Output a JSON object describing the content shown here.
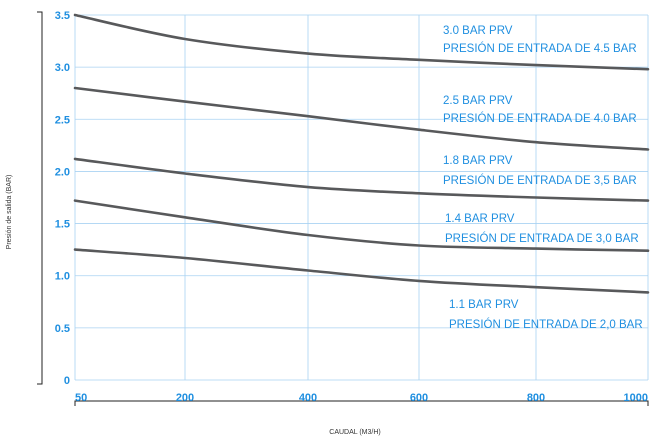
{
  "chart_data": {
    "type": "line",
    "title": "",
    "xlabel": "CAUDAL (M3/H)",
    "ylabel": "Presión de salida (BAR)",
    "x_ticks": [
      "50",
      "200",
      "400",
      "600",
      "800",
      "1000"
    ],
    "y_ticks": [
      "0",
      "0.5",
      "1.0",
      "1.5",
      "2.0",
      "2.5",
      "3.0",
      "3.5"
    ],
    "xlim": [
      50,
      1000
    ],
    "ylim": [
      0,
      3.5
    ],
    "grid": true,
    "series": [
      {
        "name": "3.0 BAR PRV",
        "subtitle": "PRESIÓN DE ENTRADA DE 4.5 BAR",
        "x": [
          50,
          200,
          400,
          600,
          800,
          1000
        ],
        "y": [
          3.5,
          3.27,
          3.13,
          3.07,
          3.02,
          2.98
        ]
      },
      {
        "name": "2.5 BAR PRV",
        "subtitle": "PRESIÓN DE ENTRADA DE 4.0 BAR",
        "x": [
          50,
          200,
          400,
          600,
          800,
          1000
        ],
        "y": [
          2.8,
          2.67,
          2.53,
          2.4,
          2.28,
          2.21
        ]
      },
      {
        "name": "1.8 BAR PRV",
        "subtitle": "PRESIÓN DE ENTRADA DE 3,5 BAR",
        "x": [
          50,
          200,
          400,
          600,
          800,
          1000
        ],
        "y": [
          2.12,
          1.98,
          1.85,
          1.79,
          1.75,
          1.72
        ]
      },
      {
        "name": "1.4 BAR PRV",
        "subtitle": "PRESIÓN DE ENTRADA DE 3,0 BAR",
        "x": [
          50,
          200,
          400,
          600,
          800,
          1000
        ],
        "y": [
          1.72,
          1.56,
          1.39,
          1.29,
          1.26,
          1.24
        ]
      },
      {
        "name": "1.1 BAR PRV",
        "subtitle": "PRESIÓN DE ENTRADA DE 2,0 BAR",
        "x": [
          50,
          200,
          400,
          600,
          800,
          1000
        ],
        "y": [
          1.25,
          1.17,
          1.05,
          0.95,
          0.89,
          0.84
        ]
      }
    ],
    "colors": {
      "line": "#58595b",
      "label": "#1f8fe0",
      "tick": "#1f8fe0",
      "grid": "#a9d2f2",
      "axis": "#222222"
    }
  }
}
